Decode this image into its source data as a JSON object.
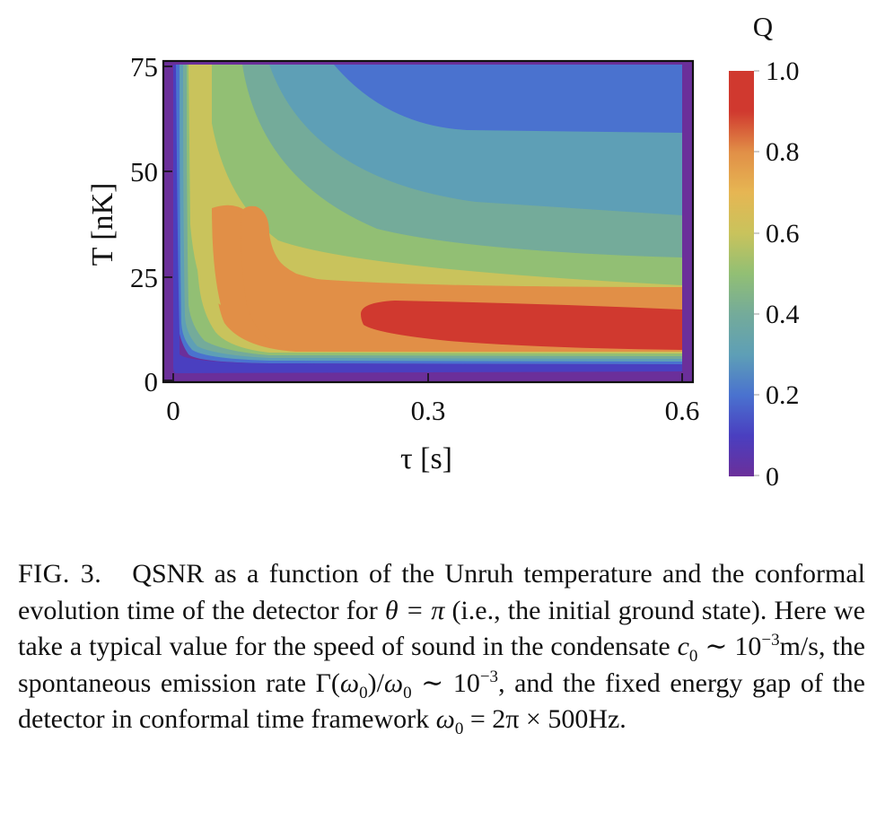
{
  "figure": {
    "chart_data": {
      "type": "contour",
      "xlabel": "τ [s]",
      "ylabel": "T [nK]",
      "xlim": [
        0,
        0.6
      ],
      "ylim": [
        0,
        75
      ],
      "x_ticks": [
        "0",
        "0.3",
        "0.6"
      ],
      "y_ticks": [
        "0",
        "25",
        "50",
        "75"
      ],
      "colorbar": {
        "title": "Q",
        "range": [
          0,
          1.0
        ],
        "ticks": [
          "0",
          "0.2",
          "0.4",
          "0.6",
          "0.8",
          "1.0"
        ]
      },
      "contour_levels": [
        0,
        0.1,
        0.2,
        0.3,
        0.4,
        0.5,
        0.6,
        0.7,
        0.8,
        0.9,
        1.0
      ],
      "colors": [
        "#6b2f9a",
        "#4a3fc0",
        "#4a72cf",
        "#5e9fb6",
        "#74ab9a",
        "#92bf74",
        "#c9c35c",
        "#e6b653",
        "#e18f47",
        "#d0392f"
      ],
      "grid": false
    }
  },
  "caption": {
    "label": "FIG. 3.",
    "text1": "QSNR as a function of the Unruh temperature and the conformal evolution time of the detector for ",
    "theta_eq": "θ = π",
    "text2": " (i.e., the initial ground state). Here we take a typical value for the speed of sound in the condensate ",
    "c0": "c",
    "c0_sub": "0",
    "sim1": " ∼ 10",
    "exp1": "−3",
    "unit1": "m/s, the spontaneous emission rate Γ(",
    "omega": "ω",
    "omega_sub": "0",
    "ratio_mid": ")/",
    "sim2": " ∼ 10",
    "exp2": "−3",
    "text3": ", and the fixed energy gap of the detector in conformal time framework ",
    "final_eq": " = 2π × 500Hz."
  }
}
